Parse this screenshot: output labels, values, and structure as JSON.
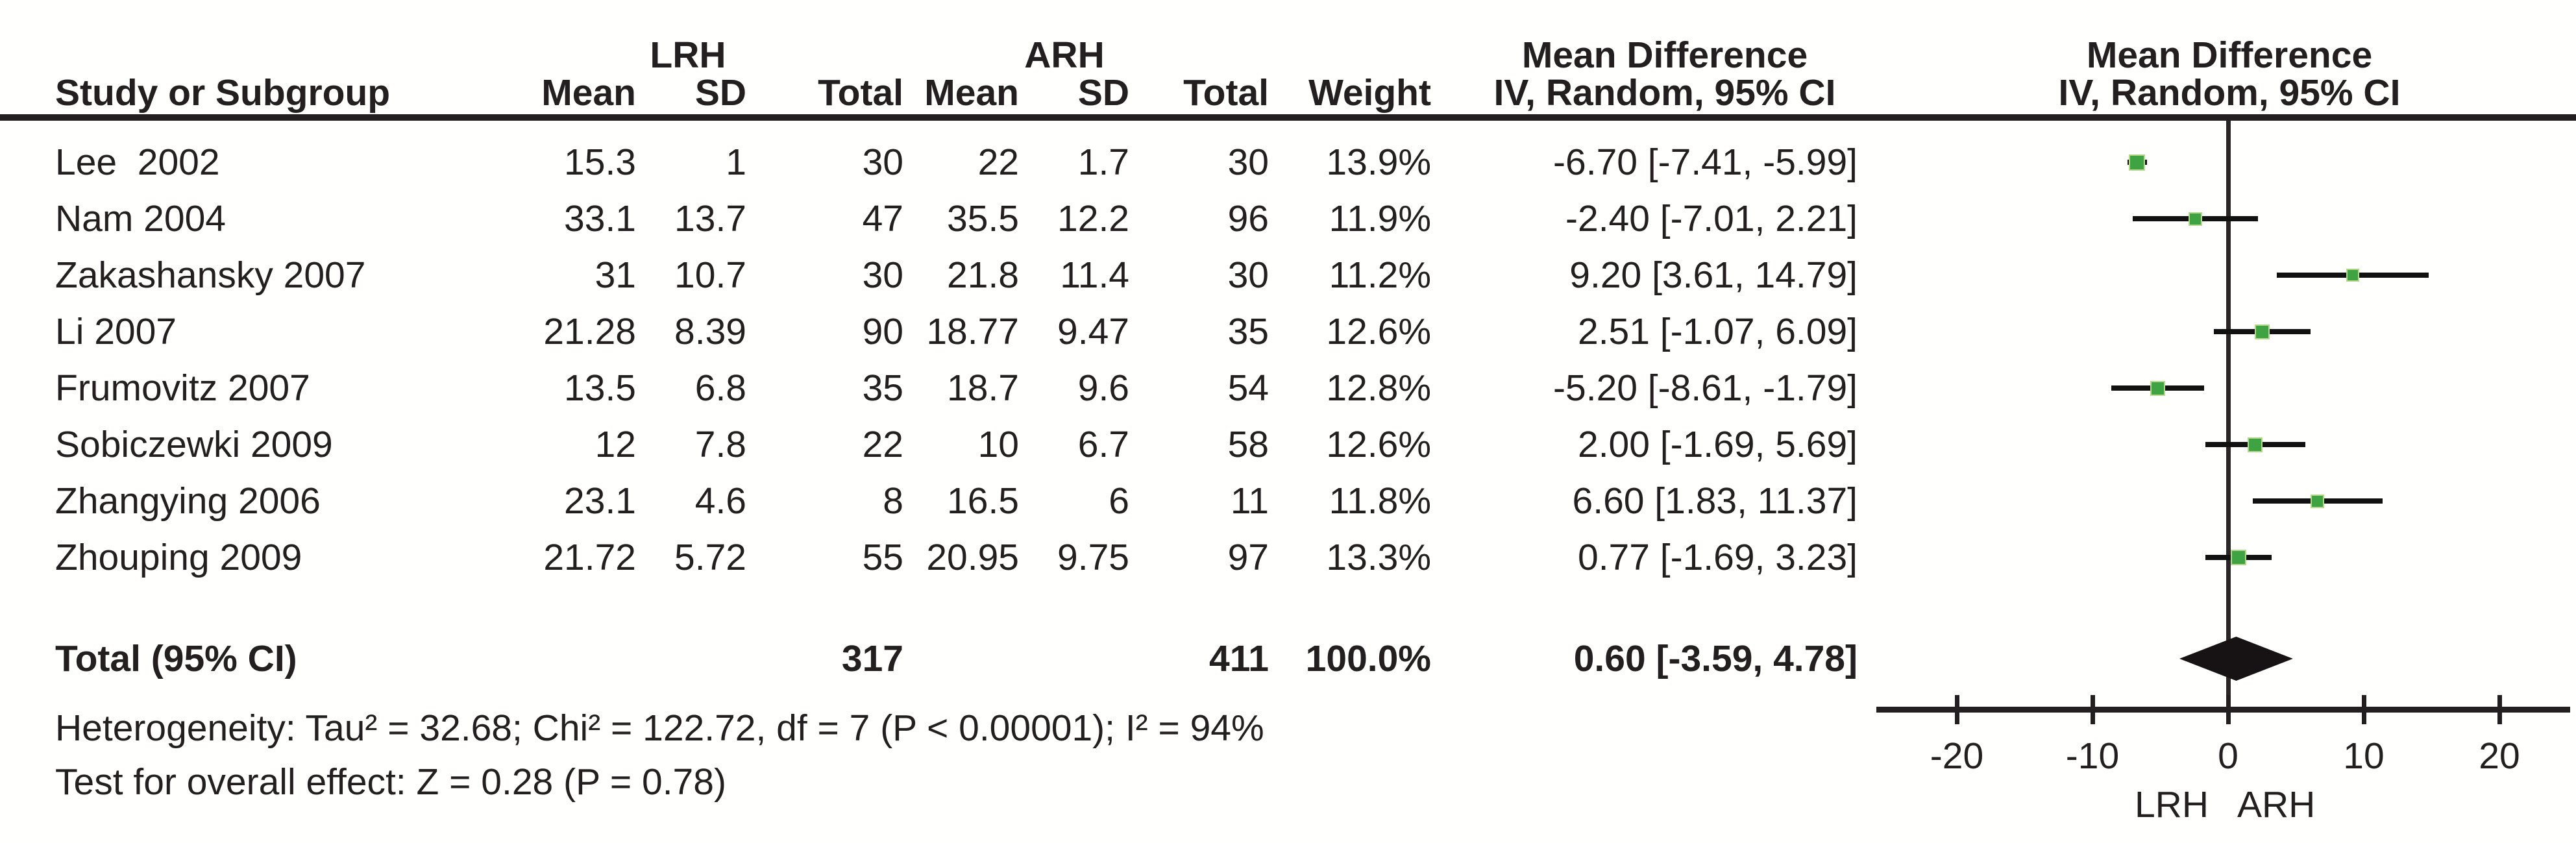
{
  "colors": {
    "ink": "#231f20",
    "marker": "#3fa344",
    "marker_border": "#b5d98a",
    "diamond": "#171314"
  },
  "table": {
    "group1_label": "LRH",
    "group2_label": "ARH",
    "md_header": "Mean Difference",
    "md_subheader": "IV, Random, 95% CI",
    "plot_md_header": "Mean Difference",
    "plot_md_subheader": "IV, Random, 95% CI",
    "col_study": "Study or Subgroup",
    "col_mean1": "Mean",
    "col_sd1": "SD",
    "col_total1": "Total",
    "col_mean2": "Mean",
    "col_sd2": "SD",
    "col_total2": "Total",
    "col_weight": "Weight",
    "rows": [
      {
        "study": "Lee  2002",
        "lrh_mean": "15.3",
        "lrh_sd": "1",
        "lrh_total": "30",
        "arh_mean": "22",
        "arh_sd": "1.7",
        "arh_total": "30",
        "weight": "13.9%",
        "ci": "-6.70 [-7.41, -5.99]"
      },
      {
        "study": "Nam 2004",
        "lrh_mean": "33.1",
        "lrh_sd": "13.7",
        "lrh_total": "47",
        "arh_mean": "35.5",
        "arh_sd": "12.2",
        "arh_total": "96",
        "weight": "11.9%",
        "ci": "-2.40 [-7.01, 2.21]"
      },
      {
        "study": "Zakashansky 2007",
        "lrh_mean": "31",
        "lrh_sd": "10.7",
        "lrh_total": "30",
        "arh_mean": "21.8",
        "arh_sd": "11.4",
        "arh_total": "30",
        "weight": "11.2%",
        "ci": "9.20 [3.61, 14.79]"
      },
      {
        "study": "Li 2007",
        "lrh_mean": "21.28",
        "lrh_sd": "8.39",
        "lrh_total": "90",
        "arh_mean": "18.77",
        "arh_sd": "9.47",
        "arh_total": "35",
        "weight": "12.6%",
        "ci": "2.51 [-1.07, 6.09]"
      },
      {
        "study": "Frumovitz 2007",
        "lrh_mean": "13.5",
        "lrh_sd": "6.8",
        "lrh_total": "35",
        "arh_mean": "18.7",
        "arh_sd": "9.6",
        "arh_total": "54",
        "weight": "12.8%",
        "ci": "-5.20 [-8.61, -1.79]"
      },
      {
        "study": "Sobiczewki 2009",
        "lrh_mean": "12",
        "lrh_sd": "7.8",
        "lrh_total": "22",
        "arh_mean": "10",
        "arh_sd": "6.7",
        "arh_total": "58",
        "weight": "12.6%",
        "ci": "2.00 [-1.69, 5.69]"
      },
      {
        "study": "Zhangying 2006",
        "lrh_mean": "23.1",
        "lrh_sd": "4.6",
        "lrh_total": "8",
        "arh_mean": "16.5",
        "arh_sd": "6",
        "arh_total": "11",
        "weight": "11.8%",
        "ci": "6.60 [1.83, 11.37]"
      },
      {
        "study": "Zhouping 2009",
        "lrh_mean": "21.72",
        "lrh_sd": "5.72",
        "lrh_total": "55",
        "arh_mean": "20.95",
        "arh_sd": "9.75",
        "arh_total": "97",
        "weight": "13.3%",
        "ci": "0.77 [-1.69, 3.23]"
      }
    ],
    "total": {
      "label": "Total (95% CI)",
      "lrh_total": "317",
      "arh_total": "411",
      "weight": "100.0%",
      "ci": "0.60 [-3.59, 4.78]"
    }
  },
  "footer": {
    "heterogeneity": "Heterogeneity: Tau² = 32.68; Chi² = 122.72, df = 7 (P < 0.00001); I² = 94%",
    "overall_effect": "Test for overall effect: Z = 0.28 (P = 0.78)"
  },
  "chart_data": {
    "type": "scatter",
    "variant": "forest_meta_analysis",
    "title": "Mean Difference",
    "subtitle": "IV, Random, 95% CI",
    "x_axis": {
      "ticks": [
        -20,
        -10,
        0,
        10,
        20
      ],
      "range": [
        -26,
        26
      ],
      "zero_line": 0,
      "label_left": "LRH",
      "label_right": "ARH"
    },
    "studies": [
      {
        "name": "Lee  2002",
        "md": -6.7,
        "ci_low": -7.41,
        "ci_high": -5.99,
        "weight_pct": 13.9
      },
      {
        "name": "Nam 2004",
        "md": -2.4,
        "ci_low": -7.01,
        "ci_high": 2.21,
        "weight_pct": 11.9
      },
      {
        "name": "Zakashansky 2007",
        "md": 9.2,
        "ci_low": 3.61,
        "ci_high": 14.79,
        "weight_pct": 11.2
      },
      {
        "name": "Li 2007",
        "md": 2.51,
        "ci_low": -1.07,
        "ci_high": 6.09,
        "weight_pct": 12.6
      },
      {
        "name": "Frumovitz 2007",
        "md": -5.2,
        "ci_low": -8.61,
        "ci_high": -1.79,
        "weight_pct": 12.8
      },
      {
        "name": "Sobiczewki 2009",
        "md": 2.0,
        "ci_low": -1.69,
        "ci_high": 5.69,
        "weight_pct": 12.6
      },
      {
        "name": "Zhangying 2006",
        "md": 6.6,
        "ci_low": 1.83,
        "ci_high": 11.37,
        "weight_pct": 11.8
      },
      {
        "name": "Zhouping 2009",
        "md": 0.77,
        "ci_low": -1.69,
        "ci_high": 3.23,
        "weight_pct": 13.3
      }
    ],
    "total": {
      "name": "Total (95% CI)",
      "md": 0.6,
      "ci_low": -3.59,
      "ci_high": 4.78,
      "weight_pct": 100.0
    }
  }
}
